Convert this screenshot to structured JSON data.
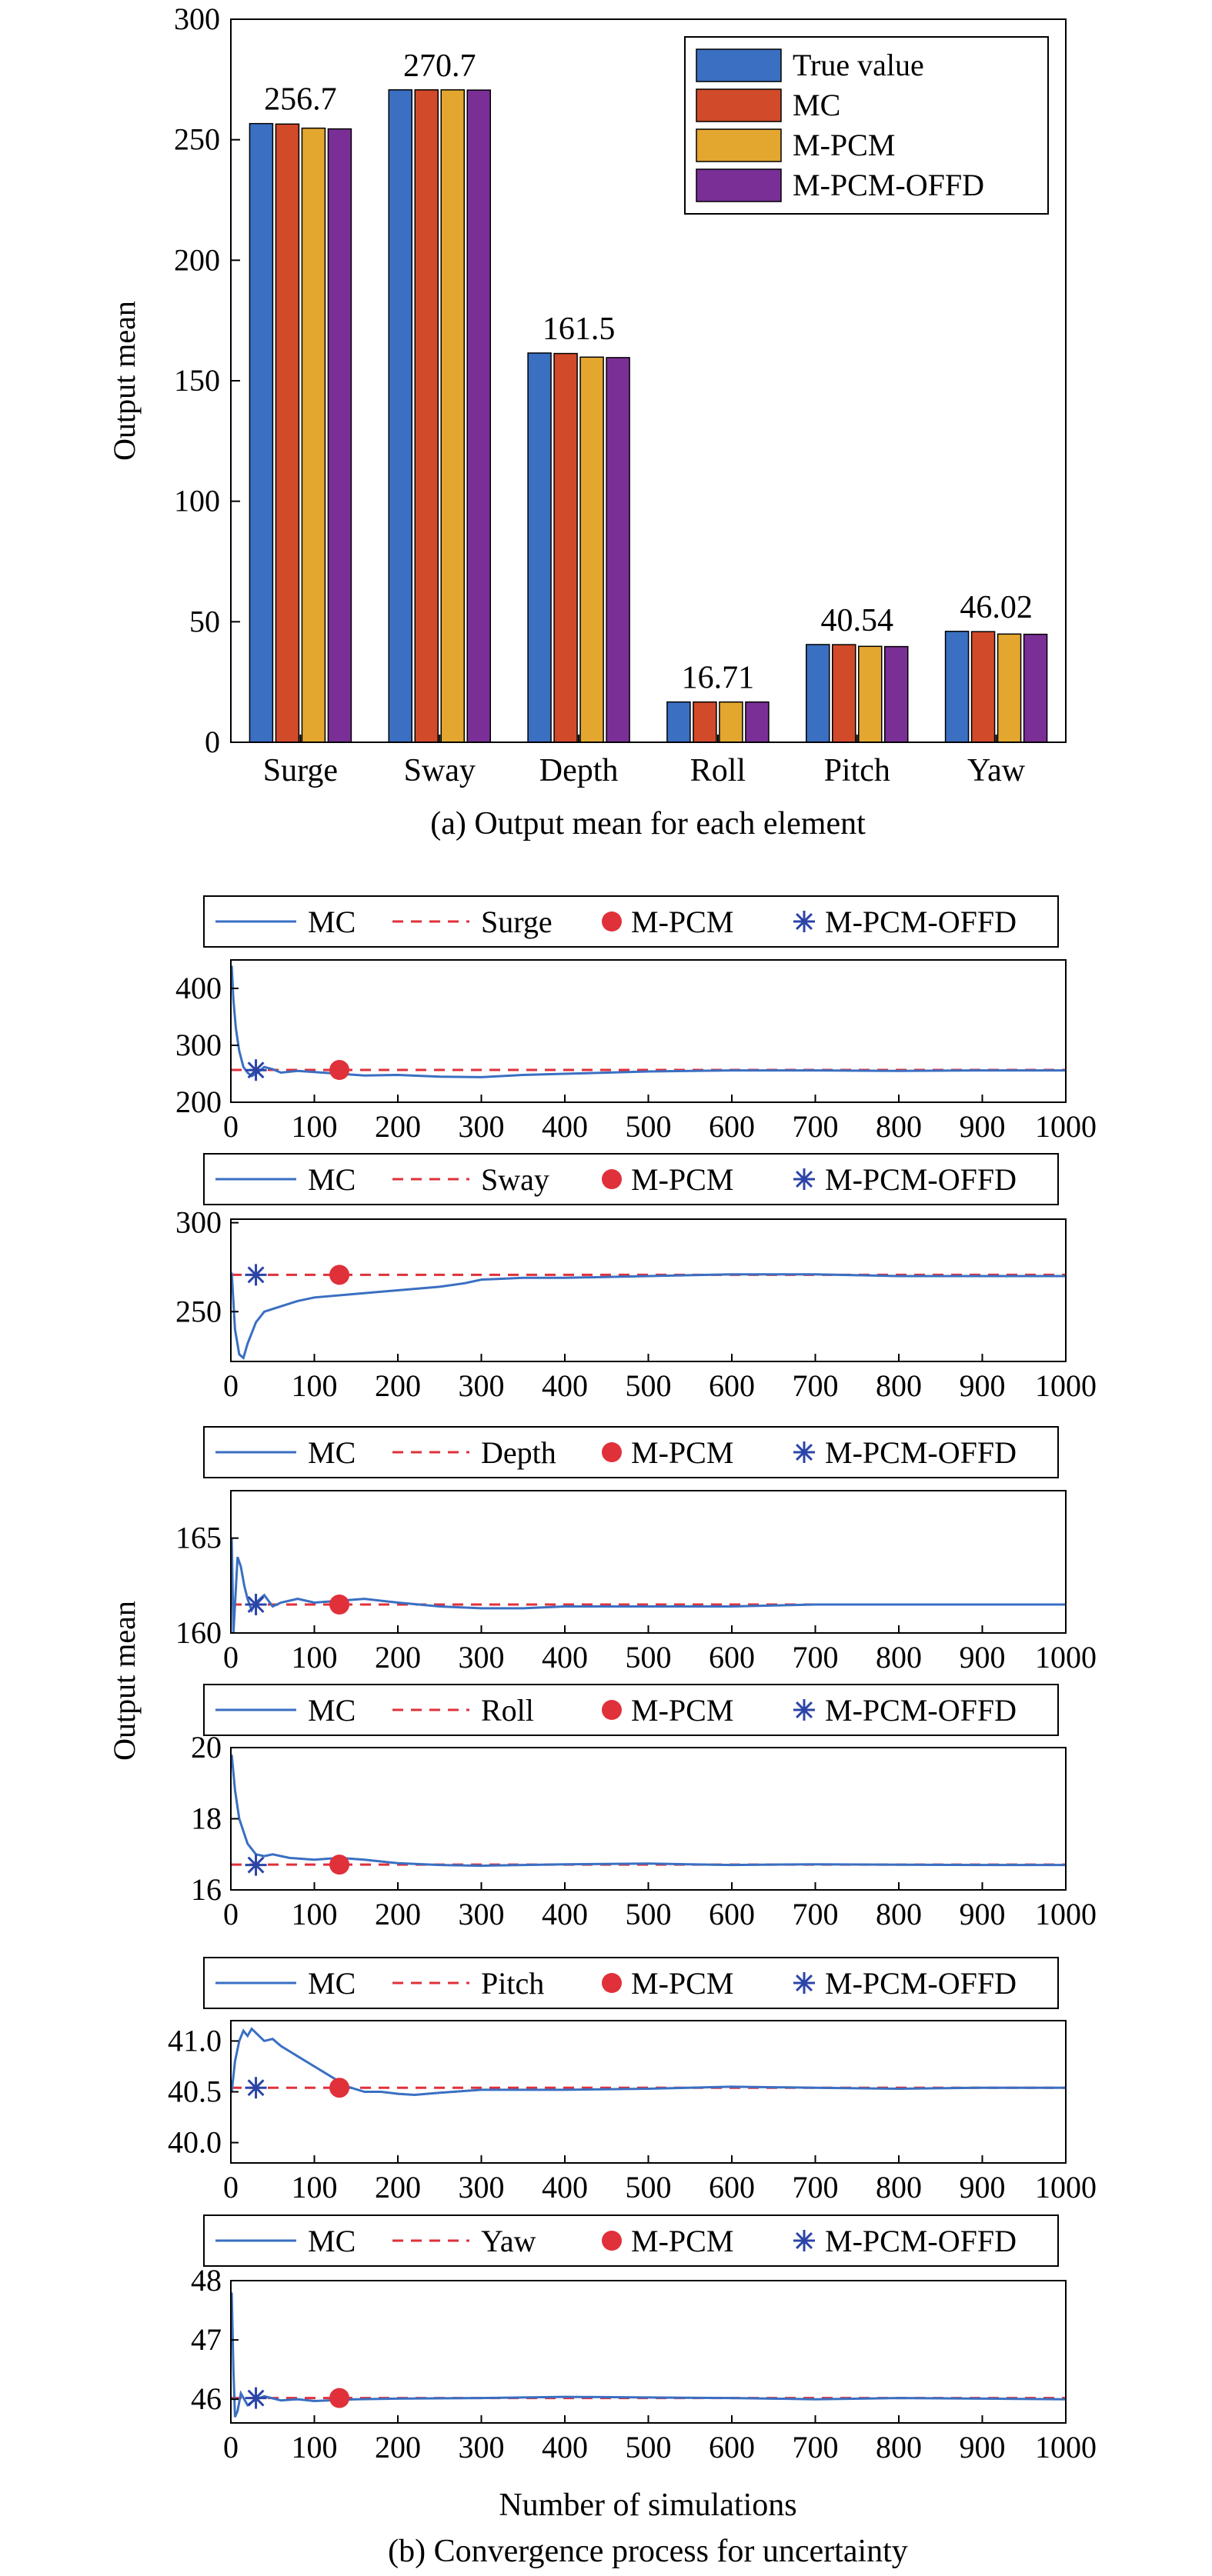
{
  "chart_data": [
    {
      "type": "bar",
      "categories": [
        "Surge",
        "Sway",
        "Depth",
        "Roll",
        "Pitch",
        "Yaw"
      ],
      "series": [
        {
          "name": "True value",
          "color": "#3a6fc2",
          "values": [
            256.7,
            270.7,
            161.5,
            16.71,
            40.54,
            46.02
          ]
        },
        {
          "name": "MC",
          "color": "#d14a2a",
          "values": [
            256.5,
            270.7,
            161.3,
            16.7,
            40.5,
            45.9
          ]
        },
        {
          "name": "M-PCM",
          "color": "#e3a72f",
          "values": [
            254.8,
            270.7,
            159.8,
            16.7,
            39.8,
            44.9
          ]
        },
        {
          "name": "M-PCM-OFFD",
          "color": "#7a2f96",
          "values": [
            254.5,
            270.6,
            159.6,
            16.7,
            39.7,
            44.8
          ]
        }
      ],
      "annotations": [
        "256.7",
        "270.7",
        "161.5",
        "16.71",
        "40.54",
        "46.02"
      ],
      "ylabel": "Output mean",
      "ylim": [
        0,
        300
      ],
      "yticks": [
        "0",
        "50",
        "100",
        "150",
        "200",
        "250",
        "300"
      ],
      "legend_position": "top-right",
      "caption": "(a) Output mean for each element"
    },
    {
      "type": "line",
      "series_names": [
        "MC",
        "M-PCM",
        "M-PCM-OFFD"
      ],
      "colors": {
        "MC": "#3a6fc2",
        "true_line": "#e0303a",
        "M-PCM": "#e0303a",
        "M-PCM-OFFD": "#2b44a8"
      },
      "xlim": [
        0,
        1000
      ],
      "xticks": [
        "0",
        "100",
        "200",
        "300",
        "400",
        "500",
        "600",
        "700",
        "800",
        "900",
        "1000"
      ],
      "xlabel": "Number of simulations",
      "ylabel": "Output mean",
      "caption": "(b) Convergence process for uncertainty",
      "panels": [
        {
          "name": "Surge",
          "ylim": [
            200,
            450
          ],
          "yticks": [
            "200",
            "300",
            "400"
          ],
          "true_value": 256.7,
          "mpcm": {
            "x": 130,
            "y": 256.7
          },
          "offd": {
            "x": 30,
            "y": 256.5
          },
          "mc_x": [
            1,
            3,
            6,
            10,
            15,
            20,
            25,
            30,
            40,
            50,
            60,
            80,
            100,
            130,
            160,
            200,
            250,
            300,
            350,
            400,
            450,
            500,
            600,
            700,
            800,
            900,
            1000
          ],
          "mc_y": [
            440,
            380,
            330,
            290,
            262,
            252,
            246,
            250,
            262,
            258,
            252,
            255,
            253,
            250,
            247,
            248,
            245,
            244,
            248,
            250,
            252,
            254,
            256,
            256,
            255,
            256,
            256
          ]
        },
        {
          "name": "Sway",
          "ylim": [
            222,
            302
          ],
          "yticks": [
            "250",
            "300"
          ],
          "true_value": 270.7,
          "mpcm": {
            "x": 130,
            "y": 270.7
          },
          "offd": {
            "x": 30,
            "y": 270.7
          },
          "mc_x": [
            1,
            5,
            10,
            15,
            20,
            30,
            40,
            60,
            80,
            100,
            150,
            200,
            250,
            280,
            300,
            350,
            400,
            500,
            600,
            700,
            800,
            900,
            1000
          ],
          "mc_y": [
            272,
            240,
            226,
            224,
            232,
            244,
            250,
            253,
            256,
            258,
            260,
            262,
            264,
            266,
            268,
            269,
            269,
            270,
            271,
            271,
            270,
            270,
            270
          ]
        },
        {
          "name": "Depth",
          "ylim": [
            160,
            167.5
          ],
          "yticks": [
            "160",
            "165"
          ],
          "true_value": 161.5,
          "mpcm": {
            "x": 130,
            "y": 161.5
          },
          "offd": {
            "x": 30,
            "y": 161.5
          },
          "mc_x": [
            1,
            3,
            5,
            8,
            12,
            16,
            20,
            25,
            30,
            40,
            50,
            60,
            80,
            100,
            130,
            160,
            200,
            250,
            300,
            350,
            400,
            500,
            600,
            700,
            800,
            900,
            1000
          ],
          "mc_y": [
            165,
            160,
            161.5,
            164,
            163.5,
            162.5,
            161.8,
            161.2,
            161.6,
            162,
            161.4,
            161.6,
            161.8,
            161.6,
            161.7,
            161.8,
            161.6,
            161.4,
            161.3,
            161.3,
            161.4,
            161.4,
            161.4,
            161.5,
            161.5,
            161.5,
            161.5
          ]
        },
        {
          "name": "Roll",
          "ylim": [
            16,
            20
          ],
          "yticks": [
            "16",
            "18",
            "20"
          ],
          "true_value": 16.71,
          "mpcm": {
            "x": 130,
            "y": 16.71
          },
          "offd": {
            "x": 30,
            "y": 16.7
          },
          "mc_x": [
            1,
            5,
            10,
            20,
            30,
            40,
            50,
            70,
            100,
            130,
            160,
            200,
            250,
            300,
            400,
            500,
            600,
            700,
            800,
            900,
            1000
          ],
          "mc_y": [
            19.8,
            18.8,
            18.0,
            17.3,
            17.0,
            16.95,
            17.0,
            16.9,
            16.85,
            16.9,
            16.85,
            16.75,
            16.7,
            16.68,
            16.72,
            16.74,
            16.7,
            16.72,
            16.71,
            16.7,
            16.7
          ]
        },
        {
          "name": "Pitch",
          "ylim": [
            39.8,
            41.2
          ],
          "yticks": [
            "40.0",
            "40.5",
            "41.0"
          ],
          "true_value": 40.54,
          "mpcm": {
            "x": 130,
            "y": 40.54
          },
          "offd": {
            "x": 30,
            "y": 40.54
          },
          "mc_x": [
            1,
            5,
            10,
            15,
            20,
            25,
            30,
            40,
            50,
            60,
            70,
            80,
            100,
            120,
            140,
            160,
            180,
            200,
            220,
            250,
            300,
            400,
            500,
            600,
            700,
            800,
            900,
            1000
          ],
          "mc_y": [
            40.5,
            40.8,
            41.0,
            41.1,
            41.05,
            41.12,
            41.08,
            41.0,
            41.02,
            40.95,
            40.9,
            40.85,
            40.75,
            40.65,
            40.55,
            40.5,
            40.5,
            40.48,
            40.47,
            40.49,
            40.52,
            40.52,
            40.53,
            40.55,
            40.54,
            40.53,
            40.54,
            40.54
          ]
        },
        {
          "name": "Yaw",
          "ylim": [
            45.6,
            48
          ],
          "yticks": [
            "46",
            "47",
            "48"
          ],
          "true_value": 46.02,
          "mpcm": {
            "x": 130,
            "y": 46.02
          },
          "offd": {
            "x": 30,
            "y": 46.02
          },
          "mc_x": [
            1,
            3,
            5,
            8,
            12,
            16,
            20,
            30,
            40,
            60,
            80,
            100,
            150,
            200,
            300,
            400,
            500,
            600,
            700,
            800,
            900,
            1000
          ],
          "mc_y": [
            47.8,
            46.5,
            45.7,
            45.8,
            46.1,
            46.0,
            45.9,
            46.0,
            46.05,
            45.98,
            46.0,
            45.97,
            46.0,
            46.01,
            46.02,
            46.04,
            46.03,
            46.02,
            46.0,
            46.02,
            46.01,
            46.0
          ]
        }
      ]
    }
  ]
}
